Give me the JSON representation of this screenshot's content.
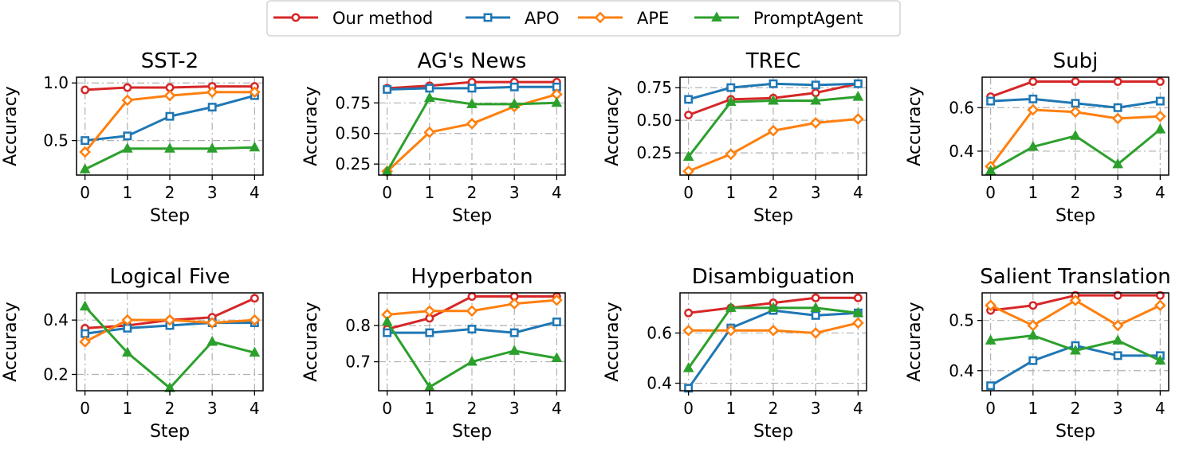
{
  "legend": {
    "series_names": [
      "Our method",
      "APO",
      "APE",
      "PromptAgent"
    ],
    "position": "top-center"
  },
  "series_styles": [
    {
      "color": "#d62728",
      "marker": "circle"
    },
    {
      "color": "#1f77b4",
      "marker": "square"
    },
    {
      "color": "#ff7f0e",
      "marker": "diamond"
    },
    {
      "color": "#2ca02c",
      "marker": "triangle"
    }
  ],
  "chart_data": [
    {
      "type": "line",
      "title": "SST-2",
      "xlabel": "Step",
      "ylabel": "Accuracy",
      "x": [
        0,
        1,
        2,
        3,
        4
      ],
      "ylim": [
        0.2,
        1.05
      ],
      "yticks": [
        0.5,
        1.0
      ],
      "ytick_labels": [
        "0.5",
        "1.0"
      ],
      "grid": true,
      "series": [
        {
          "name": "Our method",
          "values": [
            0.94,
            0.96,
            0.96,
            0.97,
            0.97
          ]
        },
        {
          "name": "APO",
          "values": [
            0.5,
            0.54,
            0.71,
            0.79,
            0.89
          ]
        },
        {
          "name": "APE",
          "values": [
            0.4,
            0.85,
            0.89,
            0.92,
            0.92
          ]
        },
        {
          "name": "PromptAgent",
          "values": [
            0.25,
            0.43,
            0.43,
            0.43,
            0.44
          ]
        }
      ]
    },
    {
      "type": "line",
      "title": "AG's News",
      "xlabel": "Step",
      "ylabel": "Accuracy",
      "x": [
        0,
        1,
        2,
        3,
        4
      ],
      "ylim": [
        0.16,
        0.96
      ],
      "yticks": [
        0.25,
        0.5,
        0.75
      ],
      "ytick_labels": [
        "0.25",
        "0.50",
        "0.75"
      ],
      "grid": true,
      "series": [
        {
          "name": "Our method",
          "values": [
            0.87,
            0.89,
            0.92,
            0.92,
            0.92
          ]
        },
        {
          "name": "APO",
          "values": [
            0.86,
            0.87,
            0.87,
            0.88,
            0.88
          ]
        },
        {
          "name": "APE",
          "values": [
            0.19,
            0.51,
            0.58,
            0.72,
            0.82
          ]
        },
        {
          "name": "PromptAgent",
          "values": [
            0.19,
            0.79,
            0.74,
            0.74,
            0.75
          ]
        }
      ]
    },
    {
      "type": "line",
      "title": "TREC",
      "xlabel": "Step",
      "ylabel": "Accuracy",
      "x": [
        0,
        1,
        2,
        3,
        4
      ],
      "ylim": [
        0.08,
        0.83
      ],
      "yticks": [
        0.25,
        0.5,
        0.75
      ],
      "ytick_labels": [
        "0.25",
        "0.50",
        "0.75"
      ],
      "grid": true,
      "series": [
        {
          "name": "Our method",
          "values": [
            0.54,
            0.66,
            0.67,
            0.71,
            0.78
          ]
        },
        {
          "name": "APO",
          "values": [
            0.66,
            0.75,
            0.78,
            0.77,
            0.78
          ]
        },
        {
          "name": "APE",
          "values": [
            0.11,
            0.24,
            0.42,
            0.48,
            0.51
          ]
        },
        {
          "name": "PromptAgent",
          "values": [
            0.22,
            0.64,
            0.65,
            0.65,
            0.68
          ]
        }
      ]
    },
    {
      "type": "line",
      "title": "Subj",
      "xlabel": "Step",
      "ylabel": "Accuracy",
      "x": [
        0,
        1,
        2,
        3,
        4
      ],
      "ylim": [
        0.29,
        0.74
      ],
      "yticks": [
        0.4,
        0.6
      ],
      "ytick_labels": [
        "0.4",
        "0.6"
      ],
      "grid": true,
      "series": [
        {
          "name": "Our method",
          "values": [
            0.65,
            0.72,
            0.72,
            0.72,
            0.72
          ]
        },
        {
          "name": "APO",
          "values": [
            0.63,
            0.64,
            0.62,
            0.6,
            0.63
          ]
        },
        {
          "name": "APE",
          "values": [
            0.33,
            0.59,
            0.58,
            0.55,
            0.56
          ]
        },
        {
          "name": "PromptAgent",
          "values": [
            0.31,
            0.42,
            0.47,
            0.34,
            0.5
          ]
        }
      ]
    },
    {
      "type": "line",
      "title": "Logical Five",
      "xlabel": "Step",
      "ylabel": "Accuracy",
      "x": [
        0,
        1,
        2,
        3,
        4
      ],
      "ylim": [
        0.14,
        0.5
      ],
      "yticks": [
        0.2,
        0.4
      ],
      "ytick_labels": [
        "0.2",
        "0.4"
      ],
      "grid": true,
      "series": [
        {
          "name": "Our method",
          "values": [
            0.37,
            0.38,
            0.4,
            0.41,
            0.48
          ]
        },
        {
          "name": "APO",
          "values": [
            0.35,
            0.37,
            0.38,
            0.39,
            0.39
          ]
        },
        {
          "name": "APE",
          "values": [
            0.32,
            0.4,
            0.4,
            0.39,
            0.4
          ]
        },
        {
          "name": "PromptAgent",
          "values": [
            0.45,
            0.28,
            0.15,
            0.32,
            0.28
          ]
        }
      ]
    },
    {
      "type": "line",
      "title": "Hyperbaton",
      "xlabel": "Step",
      "ylabel": "Accuracy",
      "x": [
        0,
        1,
        2,
        3,
        4
      ],
      "ylim": [
        0.62,
        0.89
      ],
      "yticks": [
        0.7,
        0.8
      ],
      "ytick_labels": [
        "0.7",
        "0.8"
      ],
      "grid": true,
      "series": [
        {
          "name": "Our method",
          "values": [
            0.79,
            0.82,
            0.88,
            0.88,
            0.88
          ]
        },
        {
          "name": "APO",
          "values": [
            0.78,
            0.78,
            0.79,
            0.78,
            0.81
          ]
        },
        {
          "name": "APE",
          "values": [
            0.83,
            0.84,
            0.84,
            0.86,
            0.87
          ]
        },
        {
          "name": "PromptAgent",
          "values": [
            0.81,
            0.63,
            0.7,
            0.73,
            0.71
          ]
        }
      ]
    },
    {
      "type": "line",
      "title": "Disambiguation",
      "xlabel": "Step",
      "ylabel": "Accuracy",
      "x": [
        0,
        1,
        2,
        3,
        4
      ],
      "ylim": [
        0.37,
        0.76
      ],
      "yticks": [
        0.4,
        0.6
      ],
      "ytick_labels": [
        "0.4",
        "0.6"
      ],
      "grid": true,
      "series": [
        {
          "name": "Our method",
          "values": [
            0.68,
            0.7,
            0.72,
            0.74,
            0.74
          ]
        },
        {
          "name": "APO",
          "values": [
            0.38,
            0.62,
            0.69,
            0.67,
            0.68
          ]
        },
        {
          "name": "APE",
          "values": [
            0.61,
            0.61,
            0.61,
            0.6,
            0.64
          ]
        },
        {
          "name": "PromptAgent",
          "values": [
            0.46,
            0.7,
            0.7,
            0.7,
            0.68
          ]
        }
      ]
    },
    {
      "type": "line",
      "title": "Salient Translation",
      "xlabel": "Step",
      "ylabel": "Accuracy",
      "x": [
        0,
        1,
        2,
        3,
        4
      ],
      "ylim": [
        0.36,
        0.555
      ],
      "yticks": [
        0.4,
        0.5
      ],
      "ytick_labels": [
        "0.4",
        "0.5"
      ],
      "grid": true,
      "series": [
        {
          "name": "Our method",
          "values": [
            0.52,
            0.53,
            0.55,
            0.55,
            0.55
          ]
        },
        {
          "name": "APO",
          "values": [
            0.37,
            0.42,
            0.45,
            0.43,
            0.43
          ]
        },
        {
          "name": "APE",
          "values": [
            0.53,
            0.49,
            0.54,
            0.49,
            0.53
          ]
        },
        {
          "name": "PromptAgent",
          "values": [
            0.46,
            0.47,
            0.44,
            0.46,
            0.42
          ]
        }
      ]
    }
  ]
}
